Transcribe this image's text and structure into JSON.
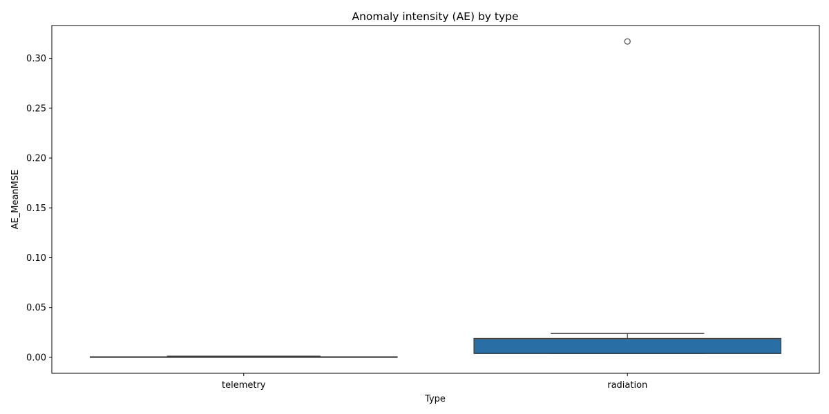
{
  "chart_data": {
    "type": "box",
    "title": "Anomaly intensity (AE) by type",
    "xlabel": "Type",
    "ylabel": "AE_MeanMSE",
    "categories": [
      "telemetry",
      "radiation"
    ],
    "yticks": [
      "0.00",
      "0.05",
      "0.10",
      "0.15",
      "0.20",
      "0.25",
      "0.30"
    ],
    "ylim": [
      -0.016,
      0.333
    ],
    "box_color": "#2a6ea6",
    "edge_color": "#3d3d3d",
    "grid": false,
    "boxes": [
      {
        "category": "telemetry",
        "whisker_low": 0.0,
        "q1": 0.0002,
        "median": 0.0004,
        "q3": 0.0006,
        "whisker_high": 0.0012,
        "outliers": []
      },
      {
        "category": "radiation",
        "whisker_low": 0.004,
        "q1": 0.004,
        "median": 0.004,
        "q3": 0.019,
        "whisker_high": 0.024,
        "outliers": [
          0.317
        ]
      }
    ]
  }
}
